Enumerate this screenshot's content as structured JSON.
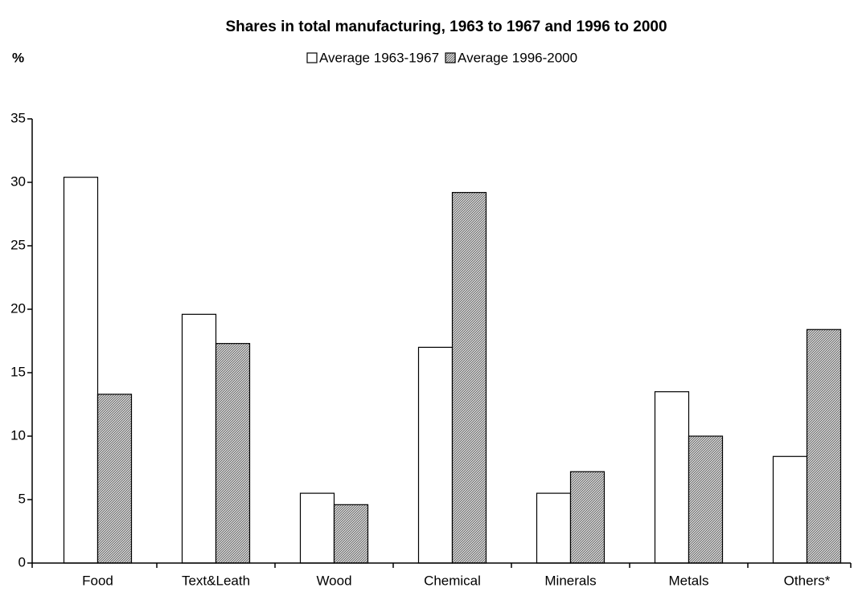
{
  "chart_data": {
    "type": "bar",
    "title": "Shares in total manufacturing, 1963 to 1967 and 1996 to 2000",
    "y_label": "%",
    "categories": [
      "Food",
      "Text&Leath",
      "Wood",
      "Chemical",
      "Minerals",
      "Metals",
      "Others*"
    ],
    "series": [
      {
        "name": "Average 1963-1967",
        "color": "#ffffff",
        "values": [
          30.4,
          19.6,
          5.5,
          17.0,
          5.5,
          13.5,
          8.4
        ]
      },
      {
        "name": "Average 1996-2000",
        "color": "#8c8c8c",
        "values": [
          13.3,
          17.3,
          4.6,
          29.2,
          7.2,
          10.0,
          18.4
        ]
      }
    ],
    "ylim": [
      0,
      35
    ],
    "yticks": [
      0,
      5,
      10,
      15,
      20,
      25,
      30,
      35
    ],
    "grid": false,
    "legend": "top"
  }
}
